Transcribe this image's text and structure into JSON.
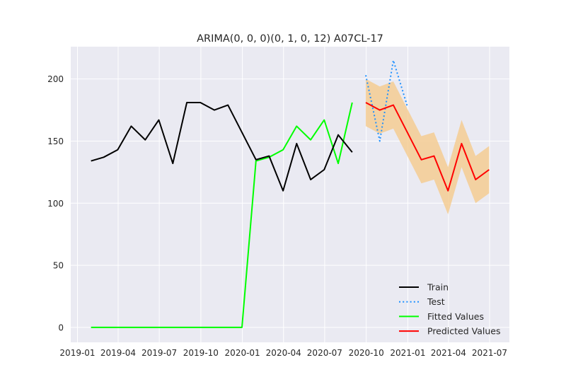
{
  "chart_data": {
    "type": "line",
    "title": "ARIMA(0, 0, 0)(0, 1, 0, 12) A07CL-17",
    "xlabel": "",
    "ylabel": "",
    "ylim": [
      -12,
      226
    ],
    "yticks": [
      0,
      50,
      100,
      150,
      200
    ],
    "xticks": [
      "2019-01",
      "2019-04",
      "2019-07",
      "2019-10",
      "2020-01",
      "2020-04",
      "2020-07",
      "2020-10",
      "2021-01",
      "2021-04",
      "2021-07"
    ],
    "grid": true,
    "legend_position": "bottom-right",
    "series": [
      {
        "name": "Train",
        "color": "#000000",
        "style": "solid",
        "x": [
          "2019-01-31",
          "2019-02-28",
          "2019-03-31",
          "2019-04-30",
          "2019-05-31",
          "2019-06-30",
          "2019-07-31",
          "2019-08-31",
          "2019-09-30",
          "2019-10-31",
          "2019-11-30",
          "2019-12-31",
          "2020-01-31",
          "2020-02-29",
          "2020-03-31",
          "2020-04-30",
          "2020-05-31",
          "2020-06-30",
          "2020-07-31",
          "2020-08-31"
        ],
        "values": [
          134,
          137,
          143,
          162,
          151,
          167,
          132,
          181,
          181,
          175,
          179,
          157,
          135,
          138,
          110,
          148,
          119,
          127,
          155,
          141
        ]
      },
      {
        "name": "Test",
        "color": "#1e90ff",
        "style": "dotted",
        "x": [
          "2020-09-30",
          "2020-10-31",
          "2020-11-30",
          "2020-12-31"
        ],
        "values": [
          203,
          150,
          215,
          178
        ]
      },
      {
        "name": "Fitted Values",
        "color": "#00ff00",
        "style": "solid",
        "x": [
          "2019-01-31",
          "2019-02-28",
          "2019-03-31",
          "2019-04-30",
          "2019-05-31",
          "2019-06-30",
          "2019-07-31",
          "2019-08-31",
          "2019-09-30",
          "2019-10-31",
          "2019-11-30",
          "2019-12-31",
          "2020-01-31",
          "2020-02-29",
          "2020-03-31",
          "2020-04-30",
          "2020-05-31",
          "2020-06-30",
          "2020-07-31",
          "2020-08-31"
        ],
        "values": [
          0,
          0,
          0,
          0,
          0,
          0,
          0,
          0,
          0,
          0,
          0,
          0,
          134,
          137,
          143,
          162,
          151,
          167,
          132,
          181
        ]
      },
      {
        "name": "Predicted Values",
        "color": "#ff0000",
        "style": "solid",
        "x": [
          "2020-09-30",
          "2020-10-31",
          "2020-11-30",
          "2020-12-31",
          "2021-01-31",
          "2021-02-28",
          "2021-03-31",
          "2021-04-30",
          "2021-05-31",
          "2021-06-30"
        ],
        "values": [
          181,
          175,
          179,
          157,
          135,
          138,
          110,
          148,
          119,
          127
        ],
        "band_lower": [
          162,
          156,
          160,
          138,
          116,
          119,
          91,
          129,
          100,
          108
        ],
        "band_upper": [
          200,
          194,
          198,
          176,
          154,
          157,
          129,
          167,
          138,
          146
        ],
        "band_color": "#f5cd93"
      }
    ]
  }
}
